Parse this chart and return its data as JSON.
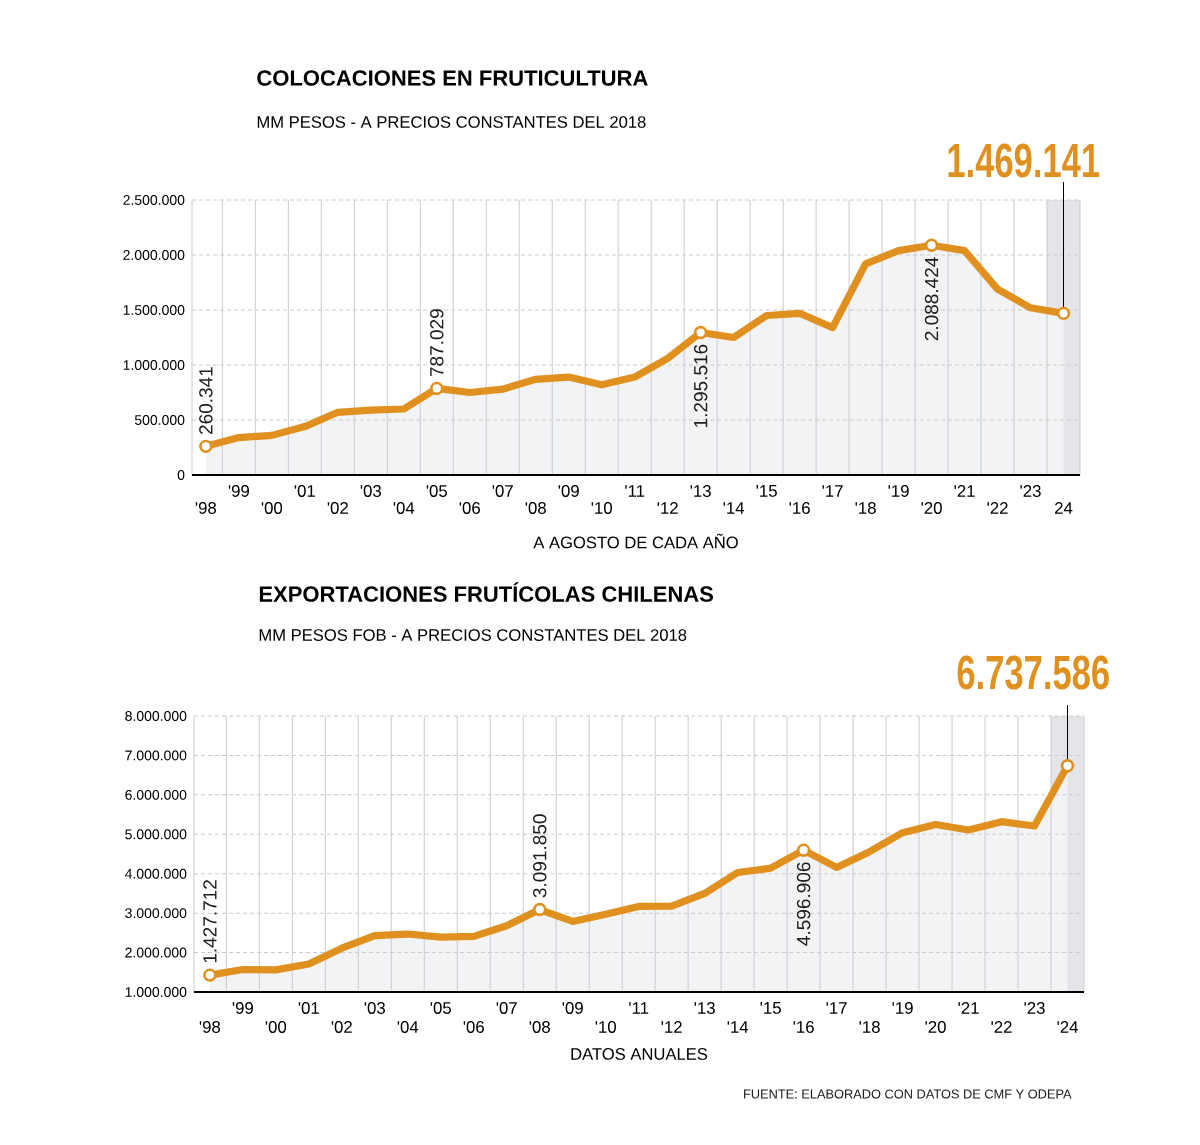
{
  "chart_data": [
    {
      "type": "area",
      "title": "COLOCACIONES EN FRUTICULTURA",
      "subtitle": "MM PESOS - A PRECIOS CONSTANTES DEL 2018",
      "xlabel": "A AGOSTO DE CADA AÑO",
      "categories": [
        "'98",
        "'99",
        "'00",
        "'01",
        "'02",
        "'03",
        "'04",
        "'05",
        "'06",
        "'07",
        "'08",
        "'09",
        "'10",
        "'11",
        "'12",
        "'13",
        "'14",
        "'15",
        "'16",
        "'17",
        "'18",
        "'19",
        "'20",
        "'21",
        "'22",
        "'23",
        "24"
      ],
      "series": [
        {
          "color": "#df901f",
          "values": [
            260341,
            340000,
            360000,
            440000,
            570000,
            590000,
            600000,
            787029,
            750000,
            780000,
            870000,
            890000,
            820000,
            890000,
            1060000,
            1295516,
            1250000,
            1450000,
            1470000,
            1340000,
            1920000,
            2040000,
            2088424,
            2040000,
            1690000,
            1520000,
            1469141
          ],
          "value_labels": [
            "260.341",
            null,
            null,
            null,
            null,
            null,
            null,
            "787.029",
            null,
            null,
            null,
            null,
            null,
            null,
            null,
            "1.295.516",
            null,
            null,
            null,
            null,
            null,
            null,
            "2.088.424",
            null,
            null,
            null,
            "1.469.141"
          ]
        }
      ],
      "ylim": [
        0,
        2500000
      ],
      "yticks": [
        0,
        {
          "value": 500000,
          "label": "500.000"
        },
        {
          "value": 1000000,
          "label": "1.000.000"
        },
        {
          "value": 1500000,
          "label": "1.500.000"
        },
        {
          "value": 2000000,
          "label": "2.000.000"
        },
        {
          "value": 2500000,
          "label": "2.500.000"
        }
      ],
      "grid": true,
      "bands": [
        {
          "axis": "x",
          "from": "24",
          "to": "24",
          "color": "#e3e5e8"
        }
      ]
    },
    {
      "type": "area",
      "title": "EXPORTACIONES FRUTÍCOLAS CHILENAS",
      "subtitle": "MM PESOS FOB - A PRECIOS CONSTANTES DEL 2018",
      "xlabel": "DATOS ANUALES",
      "categories": [
        "'98",
        "'99",
        "'00",
        "'01",
        "'02",
        "'03",
        "'04",
        "'05",
        "'06",
        "'07",
        "'08",
        "'09",
        "'10",
        "'11",
        "'12",
        "'13",
        "'14",
        "'15",
        "'16",
        "'17",
        "'18",
        "'19",
        "'20",
        "'21",
        "'22",
        "'23",
        "'24"
      ],
      "series": [
        {
          "color": "#df901f",
          "values": [
            1427712,
            1570000,
            1560000,
            1710000,
            2110000,
            2430000,
            2470000,
            2390000,
            2410000,
            2680000,
            3091850,
            2790000,
            2970000,
            3170000,
            3180000,
            3500000,
            4030000,
            4140000,
            4596906,
            4160000,
            4560000,
            5040000,
            5250000,
            5110000,
            5320000,
            5210000,
            6737586
          ],
          "value_labels": [
            "1.427.712",
            null,
            null,
            null,
            null,
            null,
            null,
            null,
            null,
            null,
            "3.091.850",
            null,
            null,
            null,
            null,
            null,
            null,
            null,
            "4.596.906",
            null,
            null,
            null,
            null,
            null,
            null,
            null,
            "6.737.586"
          ]
        }
      ],
      "ylim": [
        1000000,
        8000000
      ],
      "yticks": [
        {
          "value": 1000000,
          "label": "1.000.000"
        },
        {
          "value": 2000000,
          "label": "2.000.000"
        },
        {
          "value": 3000000,
          "label": "3.000.000"
        },
        {
          "value": 4000000,
          "label": "4.000.000"
        },
        {
          "value": 5000000,
          "label": "5.000.000"
        },
        {
          "value": 6000000,
          "label": "6.000.000"
        },
        {
          "value": 7000000,
          "label": "7.000.000"
        },
        {
          "value": 8000000,
          "label": "8.000.000"
        }
      ],
      "grid": true,
      "bands": [
        {
          "axis": "x",
          "from": "'24",
          "to": "'24",
          "color": "#e3e5e8"
        }
      ],
      "annotations": [
        "FUENTE: ELABORADO CON DATOS DE CMF Y ODEPA"
      ]
    }
  ]
}
